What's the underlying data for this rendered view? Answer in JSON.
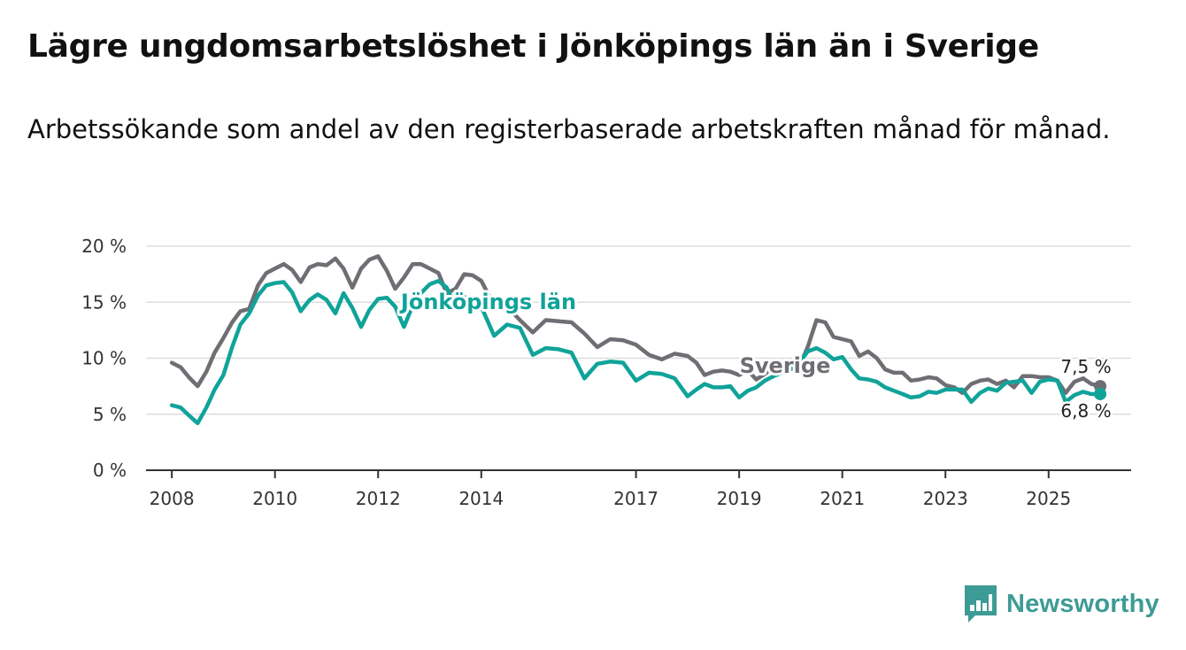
{
  "title": "Lägre ungdomsarbetslöshet i Jönköpings län än i Sverige",
  "subtitle": "Arbetssökande som andel av den registerbaserade arbetskraften månad för månad.",
  "brand": {
    "name": "Newsworthy",
    "icon": "newsworthy-logo-icon"
  },
  "colors": {
    "sverige": "#6e6e74",
    "jonkoping": "#10a39a",
    "grid": "#dddddd",
    "axis": "#333333"
  },
  "chart_data": {
    "type": "line",
    "title": "Lägre ungdomsarbetslöshet i Jönköpings län än i Sverige",
    "xlabel": "",
    "ylabel": "",
    "xlim": [
      2007.5,
      2026.6
    ],
    "ylim": [
      0,
      20
    ],
    "x_ticks": [
      {
        "value": 2008,
        "label": "2008"
      },
      {
        "value": 2010,
        "label": "2010"
      },
      {
        "value": 2012,
        "label": "2012"
      },
      {
        "value": 2014,
        "label": "2014"
      },
      {
        "value": 2017,
        "label": "2017"
      },
      {
        "value": 2019,
        "label": "2019"
      },
      {
        "value": 2021,
        "label": "2021"
      },
      {
        "value": 2023,
        "label": "2023"
      },
      {
        "value": 2025,
        "label": "2025"
      }
    ],
    "y_ticks": [
      {
        "value": 0,
        "label": "0 %"
      },
      {
        "value": 5,
        "label": "5 %"
      },
      {
        "value": 10,
        "label": "10 %"
      },
      {
        "value": 15,
        "label": "15 %"
      },
      {
        "value": 20,
        "label": "20 %"
      }
    ],
    "series": [
      {
        "name": "Sverige",
        "label": "Sverige",
        "end_label": "7,5 %",
        "x": [
          2008.0,
          2008.17,
          2008.33,
          2008.5,
          2008.67,
          2008.83,
          2009.0,
          2009.17,
          2009.33,
          2009.5,
          2009.67,
          2009.83,
          2010.0,
          2010.17,
          2010.33,
          2010.5,
          2010.67,
          2010.83,
          2011.0,
          2011.17,
          2011.33,
          2011.5,
          2011.67,
          2011.83,
          2012.0,
          2012.17,
          2012.33,
          2012.5,
          2012.67,
          2012.83,
          2013.0,
          2013.17,
          2013.33,
          2013.5,
          2013.67,
          2013.83,
          2014.0,
          2014.25,
          2014.5,
          2014.75,
          2015.0,
          2015.25,
          2015.5,
          2015.75,
          2016.0,
          2016.25,
          2016.5,
          2016.75,
          2017.0,
          2017.25,
          2017.5,
          2017.75,
          2018.0,
          2018.17,
          2018.33,
          2018.5,
          2018.67,
          2018.83,
          2019.0,
          2019.17,
          2019.33,
          2019.5,
          2019.67,
          2019.83,
          2020.0,
          2020.17,
          2020.33,
          2020.5,
          2020.67,
          2020.83,
          2021.0,
          2021.17,
          2021.33,
          2021.5,
          2021.67,
          2021.83,
          2022.0,
          2022.17,
          2022.33,
          2022.5,
          2022.67,
          2022.83,
          2023.0,
          2023.17,
          2023.33,
          2023.5,
          2023.67,
          2023.83,
          2024.0,
          2024.17,
          2024.33,
          2024.5,
          2024.67,
          2024.83,
          2025.0,
          2025.17,
          2025.33,
          2025.5,
          2025.67,
          2025.83,
          2026.0
        ],
        "values": [
          9.6,
          9.2,
          8.3,
          7.5,
          8.8,
          10.5,
          11.8,
          13.2,
          14.2,
          14.4,
          16.5,
          17.6,
          18.0,
          18.4,
          17.9,
          16.8,
          18.1,
          18.4,
          18.3,
          18.9,
          18.0,
          16.3,
          18.0,
          18.8,
          19.1,
          17.8,
          16.2,
          17.2,
          18.4,
          18.4,
          18.0,
          17.6,
          15.8,
          16.2,
          17.5,
          17.4,
          16.9,
          14.7,
          14.6,
          13.4,
          12.3,
          13.4,
          13.3,
          13.2,
          12.2,
          11.0,
          11.7,
          11.6,
          11.2,
          10.3,
          9.9,
          10.4,
          10.2,
          9.6,
          8.5,
          8.8,
          8.9,
          8.8,
          8.5,
          8.9,
          8.1,
          8.6,
          9.3,
          9.6,
          9.8,
          9.3,
          11.0,
          13.4,
          13.2,
          11.9,
          11.7,
          11.5,
          10.2,
          10.6,
          10.0,
          9.0,
          8.7,
          8.7,
          8.0,
          8.1,
          8.3,
          8.2,
          7.6,
          7.4,
          6.9,
          7.7,
          8.0,
          8.1,
          7.7,
          8.0,
          7.4,
          8.4,
          8.4,
          8.3,
          8.3,
          8.0,
          6.9,
          7.9,
          8.2,
          7.7,
          7.5
        ]
      },
      {
        "name": "Jönköpings län",
        "label": "Jönköpings län",
        "end_label": "6,8 %",
        "x": [
          2008.0,
          2008.17,
          2008.33,
          2008.5,
          2008.67,
          2008.83,
          2009.0,
          2009.17,
          2009.33,
          2009.5,
          2009.67,
          2009.83,
          2010.0,
          2010.17,
          2010.33,
          2010.5,
          2010.67,
          2010.83,
          2011.0,
          2011.17,
          2011.33,
          2011.5,
          2011.67,
          2011.83,
          2012.0,
          2012.17,
          2012.33,
          2012.5,
          2012.67,
          2012.83,
          2013.0,
          2013.17,
          2013.33,
          2013.5,
          2013.67,
          2013.83,
          2014.0,
          2014.25,
          2014.5,
          2014.75,
          2015.0,
          2015.25,
          2015.5,
          2015.75,
          2016.0,
          2016.25,
          2016.5,
          2016.75,
          2017.0,
          2017.25,
          2017.5,
          2017.75,
          2018.0,
          2018.17,
          2018.33,
          2018.5,
          2018.67,
          2018.83,
          2019.0,
          2019.17,
          2019.33,
          2019.5,
          2019.67,
          2019.83,
          2020.0,
          2020.17,
          2020.33,
          2020.5,
          2020.67,
          2020.83,
          2021.0,
          2021.17,
          2021.33,
          2021.5,
          2021.67,
          2021.83,
          2022.0,
          2022.17,
          2022.33,
          2022.5,
          2022.67,
          2022.83,
          2023.0,
          2023.17,
          2023.33,
          2023.5,
          2023.67,
          2023.83,
          2024.0,
          2024.17,
          2024.33,
          2024.5,
          2024.67,
          2024.83,
          2025.0,
          2025.17,
          2025.33,
          2025.5,
          2025.67,
          2025.83,
          2026.0
        ],
        "values": [
          5.8,
          5.6,
          4.9,
          4.2,
          5.6,
          7.2,
          8.5,
          11.0,
          13.0,
          14.0,
          15.6,
          16.5,
          16.7,
          16.8,
          15.9,
          14.2,
          15.2,
          15.7,
          15.2,
          14.0,
          15.8,
          14.5,
          12.8,
          14.3,
          15.3,
          15.4,
          14.6,
          12.8,
          14.7,
          15.8,
          16.6,
          16.9,
          16.3,
          14.6,
          15.5,
          14.9,
          14.6,
          12.0,
          13.0,
          12.7,
          10.3,
          10.9,
          10.8,
          10.5,
          8.2,
          9.5,
          9.7,
          9.6,
          8.0,
          8.7,
          8.6,
          8.2,
          6.6,
          7.2,
          7.7,
          7.4,
          7.4,
          7.5,
          6.5,
          7.1,
          7.4,
          8.0,
          8.4,
          8.7,
          9.0,
          9.6,
          10.6,
          10.9,
          10.5,
          9.9,
          10.1,
          9.0,
          8.2,
          8.1,
          7.9,
          7.4,
          7.1,
          6.8,
          6.5,
          6.6,
          7.0,
          6.9,
          7.2,
          7.2,
          7.2,
          6.1,
          6.9,
          7.3,
          7.1,
          7.8,
          7.9,
          8.0,
          6.9,
          7.9,
          8.1,
          8.0,
          6.1,
          6.7,
          7.0,
          6.8,
          6.8
        ]
      }
    ]
  }
}
